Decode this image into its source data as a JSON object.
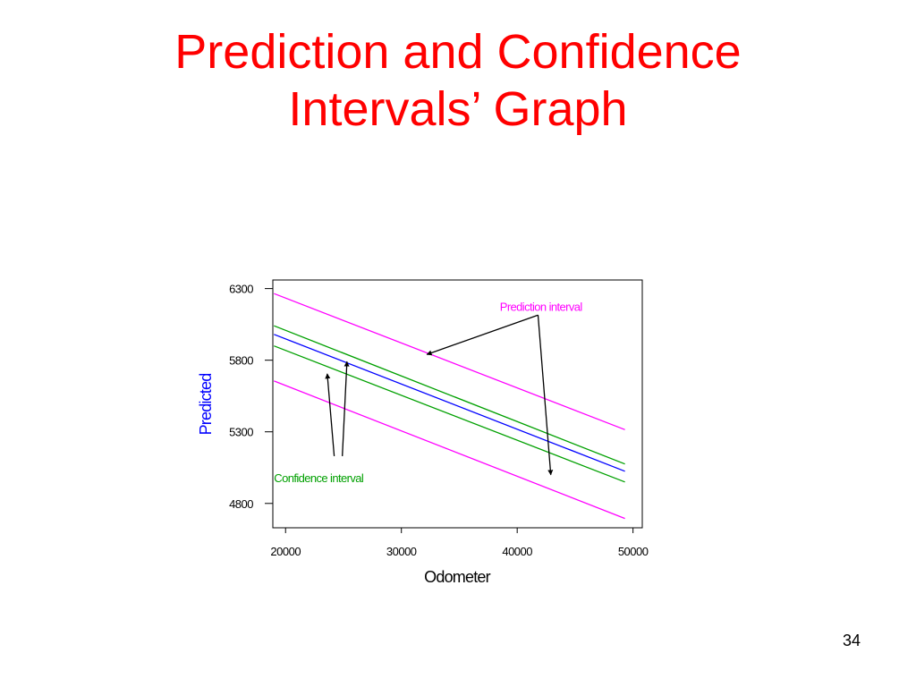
{
  "slide": {
    "title_line1": "Prediction and Confidence",
    "title_line2": "Intervals’ Graph",
    "page_number": "34"
  },
  "chart_data": {
    "type": "line",
    "xlabel": "Odometer",
    "ylabel": "Predicted",
    "xlim": [
      18900,
      50800
    ],
    "ylim": [
      4630,
      6360
    ],
    "x_ticks": [
      20000,
      30000,
      40000,
      50000
    ],
    "y_ticks": [
      4800,
      5300,
      5800,
      6300
    ],
    "x_tick_labels": [
      "20000",
      "30000",
      "40000",
      "50000"
    ],
    "y_tick_labels": [
      "4800",
      "5300",
      "5800",
      "6300"
    ],
    "grid": false,
    "series": [
      {
        "key": "pred_upper",
        "color": "#ff00ff",
        "x": [
          19000,
          49300
        ],
        "y": [
          6265,
          5315
        ]
      },
      {
        "key": "ci_upper",
        "color": "#00a000",
        "x": [
          19000,
          49300
        ],
        "y": [
          6040,
          5075
        ]
      },
      {
        "key": "fit",
        "color": "#0000ff",
        "x": [
          19000,
          49300
        ],
        "y": [
          5980,
          5025
        ]
      },
      {
        "key": "ci_lower",
        "color": "#00a000",
        "x": [
          19000,
          49300
        ],
        "y": [
          5900,
          4950
        ]
      },
      {
        "key": "pred_lower",
        "color": "#ff00ff",
        "x": [
          19000,
          49300
        ],
        "y": [
          5655,
          4695
        ]
      }
    ],
    "annotations": [
      {
        "key": "prediction",
        "text": "Prediction interval",
        "color": "#ff00ff",
        "text_at": [
          38500,
          6145
        ],
        "tail": [
          [
            41800,
            6115
          ],
          [
            41800,
            6115
          ]
        ],
        "head": [
          [
            32200,
            5840
          ],
          [
            42900,
            5000
          ]
        ]
      },
      {
        "key": "confidence",
        "text": "Confidence interval",
        "color": "#00a000",
        "text_at": [
          19000,
          4950
        ],
        "tail": [
          [
            24200,
            5130
          ],
          [
            24900,
            5130
          ]
        ],
        "head": [
          [
            23600,
            5705
          ],
          [
            25300,
            5790
          ]
        ]
      }
    ]
  }
}
